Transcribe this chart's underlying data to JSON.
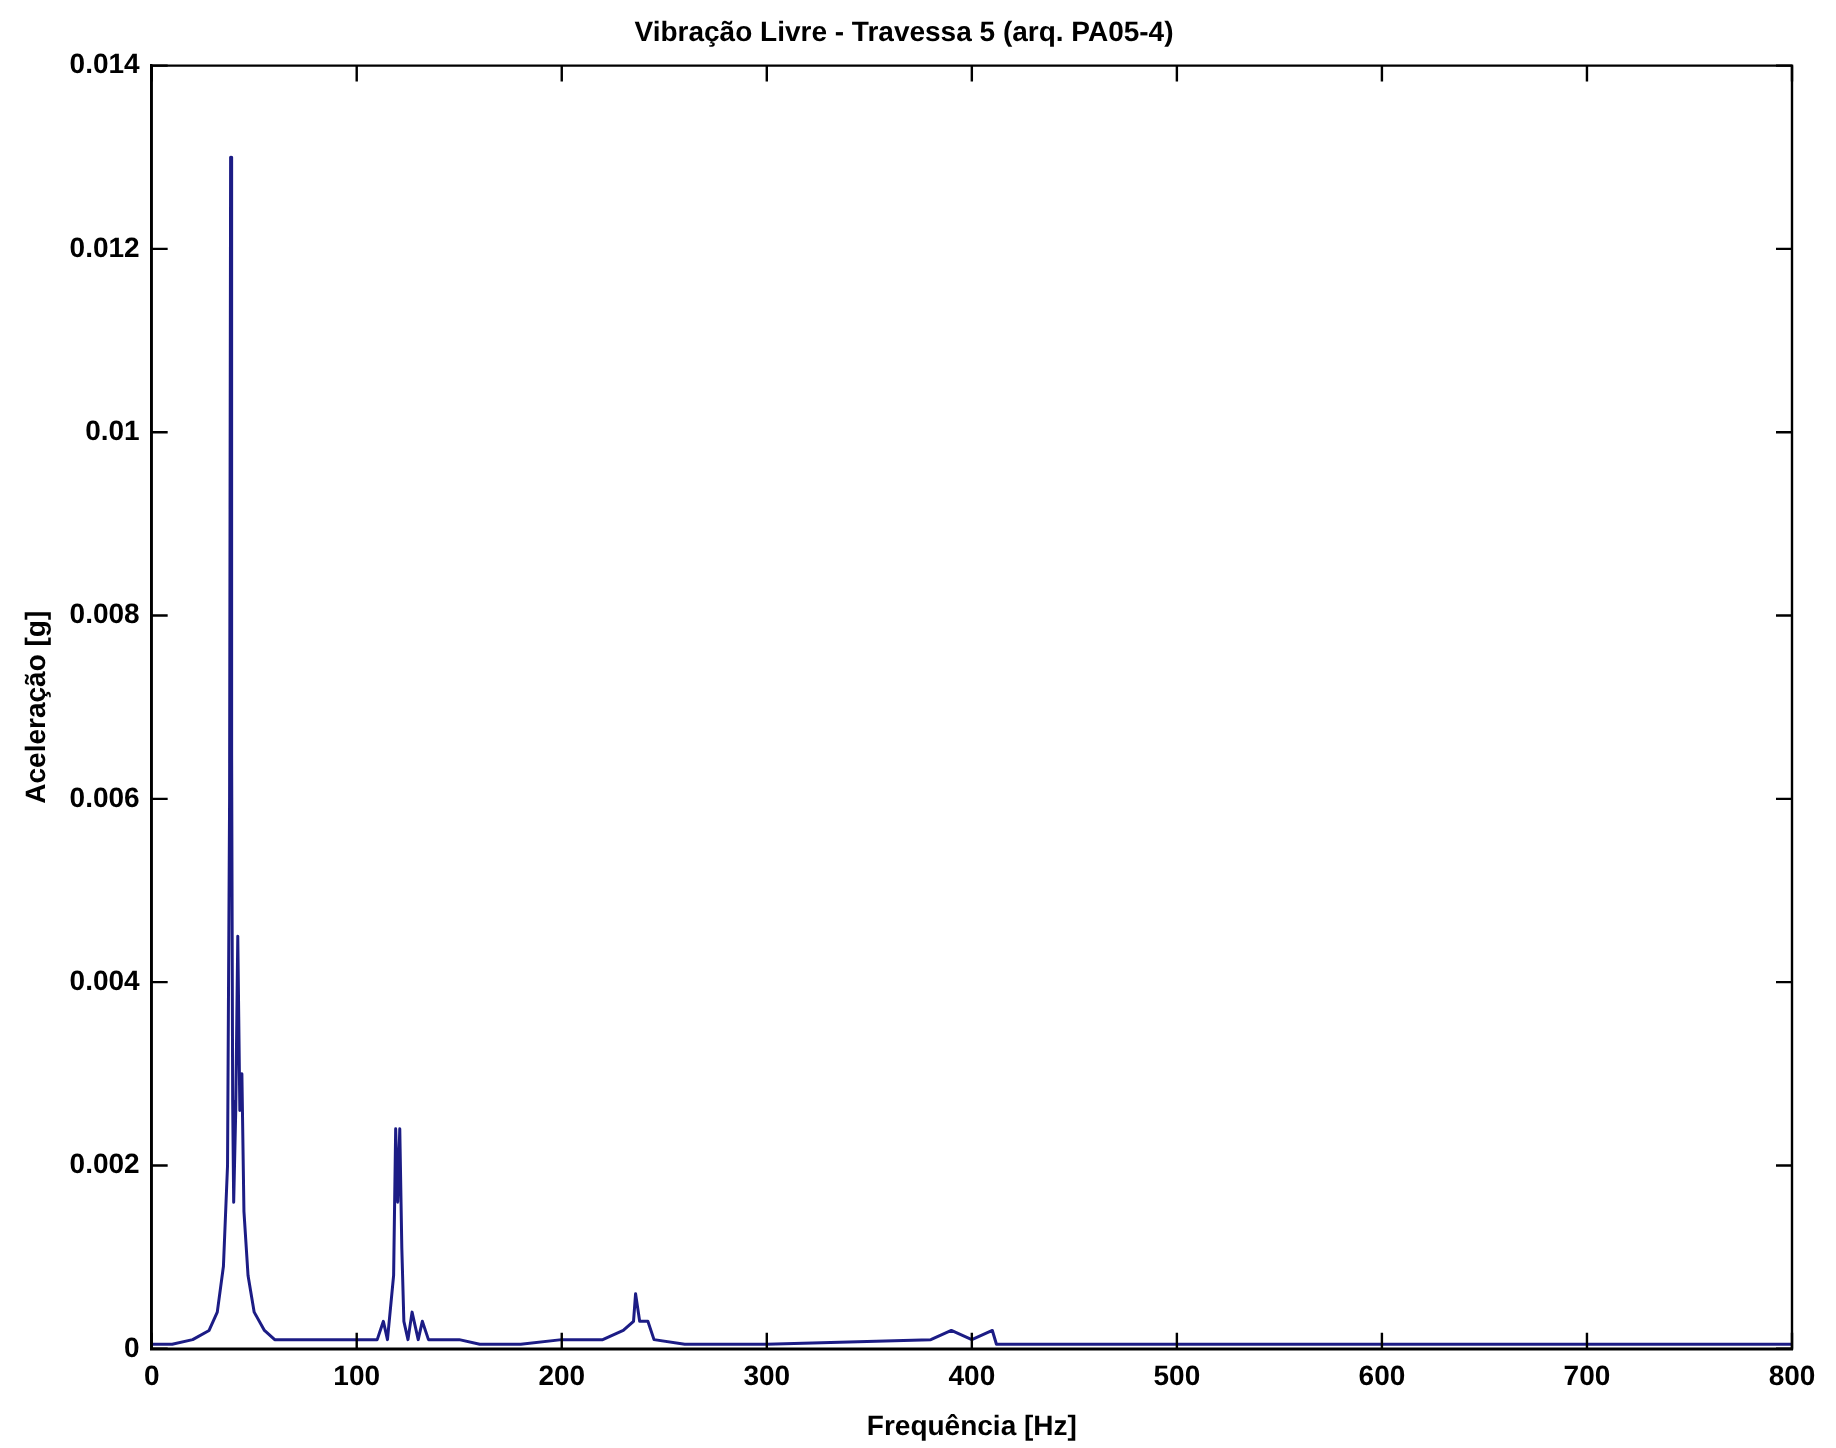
{
  "chart_data": {
    "type": "line",
    "title": "Vibração Livre - Travessa 5 (arq. PA05-4)",
    "xlabel": "Frequência [Hz]",
    "ylabel": "Aceleração [g]",
    "series": [
      {
        "color": "#1c1c85",
        "x": [
          0,
          10,
          20,
          28,
          32,
          35,
          37,
          38,
          38.5,
          39,
          39.5,
          40,
          41,
          42,
          43,
          44,
          45,
          47,
          50,
          55,
          60,
          70,
          80,
          90,
          100,
          105,
          110,
          113,
          115,
          118,
          119,
          120,
          121,
          122,
          123,
          125,
          127,
          130,
          132,
          135,
          140,
          150,
          160,
          180,
          200,
          220,
          230,
          235,
          236,
          238,
          242,
          245,
          260,
          300,
          380,
          390,
          400,
          410,
          412,
          500,
          600,
          700,
          800
        ],
        "values": [
          5e-05,
          5e-05,
          0.0001,
          0.0002,
          0.0004,
          0.0009,
          0.002,
          0.006,
          0.013,
          0.0065,
          0.0027,
          0.0016,
          0.0026,
          0.0045,
          0.0026,
          0.003,
          0.0015,
          0.0008,
          0.0004,
          0.0002,
          0.0001,
          0.0001,
          0.0001,
          0.0001,
          0.0001,
          0.0001,
          0.0001,
          0.0003,
          0.0001,
          0.0008,
          0.0024,
          0.0016,
          0.0024,
          0.0011,
          0.0003,
          0.0001,
          0.0004,
          0.0001,
          0.0003,
          0.0001,
          0.0001,
          0.0001,
          5e-05,
          5e-05,
          0.0001,
          0.0001,
          0.0002,
          0.0003,
          0.0006,
          0.0003,
          0.0003,
          0.0001,
          5e-05,
          5e-05,
          0.0001,
          0.0002,
          0.0001,
          0.0002,
          5e-05,
          5e-05,
          5e-05,
          5e-05,
          5e-05
        ]
      }
    ],
    "xlim": [
      0,
      800
    ],
    "xticks": [
      0,
      100,
      200,
      300,
      400,
      500,
      600,
      700,
      800
    ],
    "ylim": [
      0,
      0.014
    ],
    "yticks": [
      0,
      0.002,
      0.004,
      0.006,
      0.008,
      0.01,
      0.012,
      0.014
    ],
    "grid": false,
    "legend": false,
    "marker": "none",
    "line_style": "solid"
  }
}
